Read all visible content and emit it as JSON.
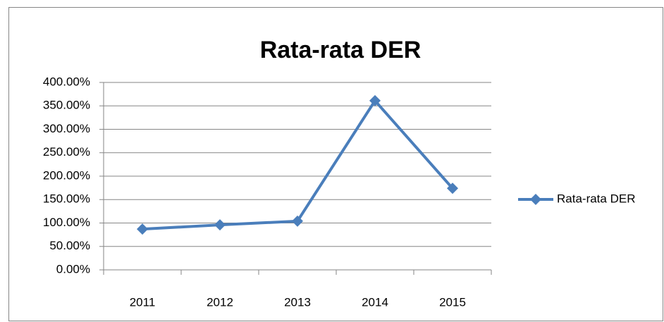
{
  "chart_data": {
    "type": "line",
    "title": "Rata-rata DER",
    "categories": [
      "2011",
      "2012",
      "2013",
      "2014",
      "2015"
    ],
    "series": [
      {
        "name": "Rata-rata DER",
        "color": "#4a7ebb",
        "values": [
          87,
          96,
          104,
          361,
          174
        ]
      }
    ],
    "ylim": [
      0,
      400
    ],
    "yticks": [
      {
        "value": 0,
        "label": "0.00%"
      },
      {
        "value": 50,
        "label": "50.00%"
      },
      {
        "value": 100,
        "label": "100.00%"
      },
      {
        "value": 150,
        "label": "150.00%"
      },
      {
        "value": 200,
        "label": "200.00%"
      },
      {
        "value": 250,
        "label": "250.00%"
      },
      {
        "value": 300,
        "label": "300.00%"
      },
      {
        "value": 350,
        "label": "350.00%"
      },
      {
        "value": 400,
        "label": "400.00%"
      }
    ],
    "grid": true,
    "legend": "right"
  }
}
